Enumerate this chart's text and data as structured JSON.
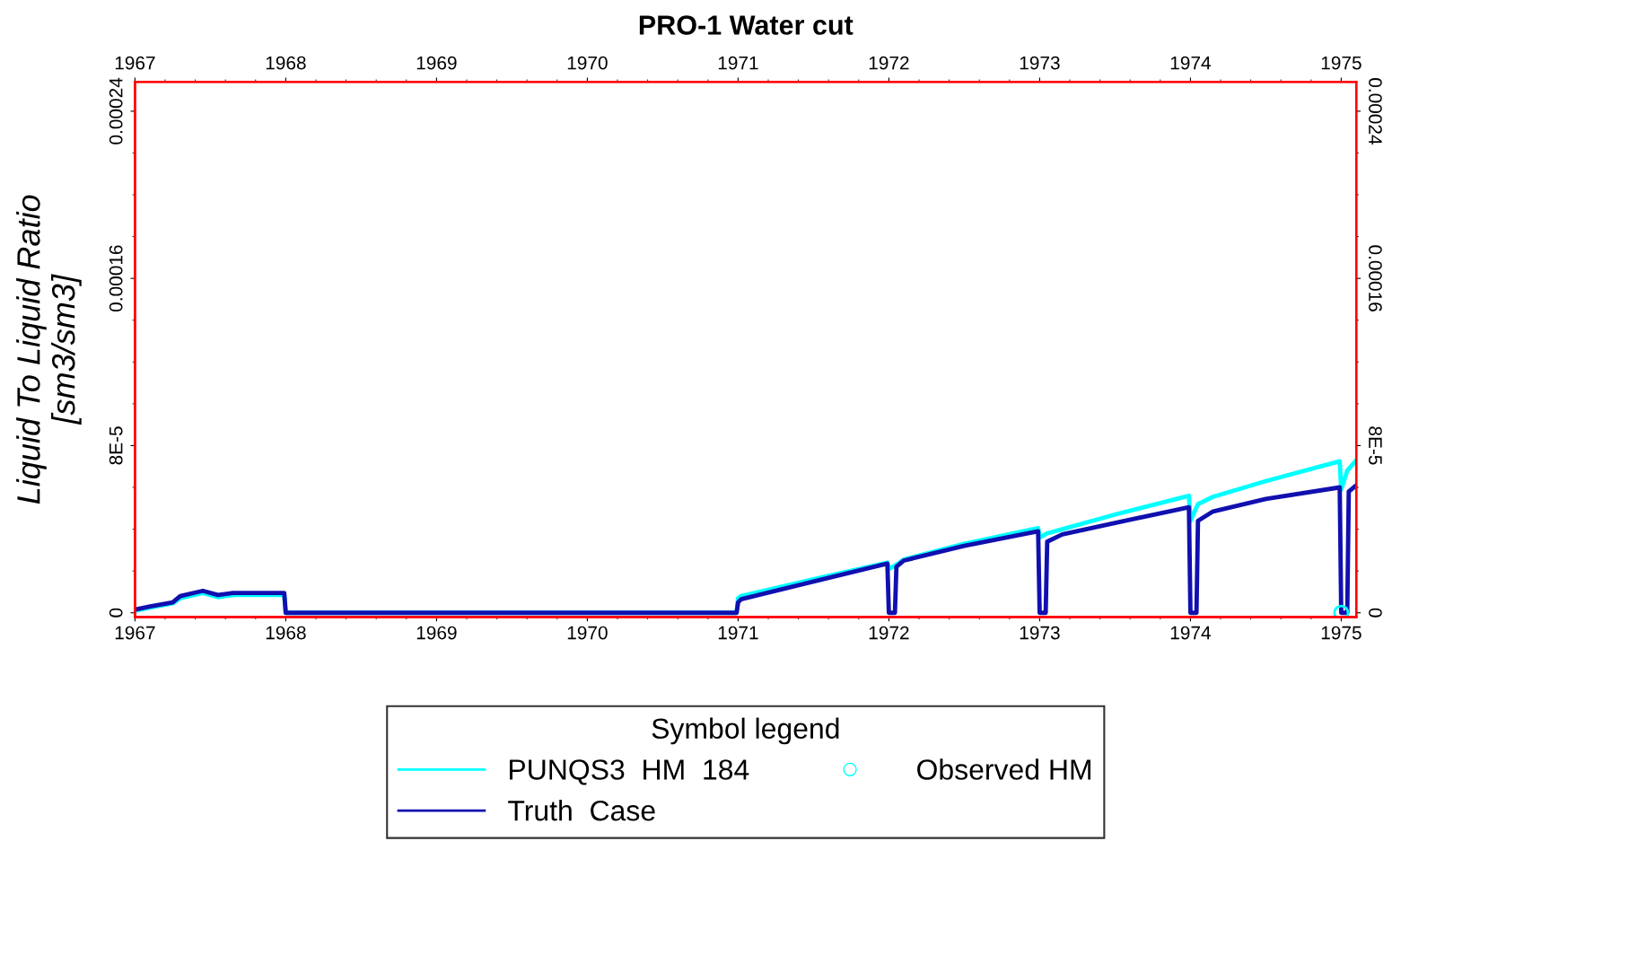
{
  "chart_data": {
    "type": "line",
    "title": "PRO-1 Water cut",
    "ylabel": "Liquid To Liquid Ratio\n[sm3/sm3]",
    "legend_title": "Symbol legend",
    "xlim": [
      1967,
      1975.1
    ],
    "xticks": [
      1967,
      1968,
      1969,
      1970,
      1971,
      1972,
      1973,
      1974,
      1975
    ],
    "x2lim": [
      1967,
      1975.1
    ],
    "x2ticks": [
      1967,
      1968,
      1969,
      1970,
      1971,
      1972,
      1973,
      1974,
      1975
    ],
    "ylim": [
      -2e-06,
      0.000254
    ],
    "yticks": [
      0,
      {
        "value": 8e-05,
        "label": "8E-5"
      },
      {
        "value": 0.00016,
        "label": "0.00016"
      },
      {
        "value": 0.00024,
        "label": "0.00024"
      }
    ],
    "y2lim": [
      -2e-06,
      0.000254
    ],
    "y2ticks": [
      0,
      {
        "value": 8e-05,
        "label": "8E-5"
      },
      {
        "value": 0.00016,
        "label": "0.00016"
      },
      {
        "value": 0.00024,
        "label": "0.00024"
      }
    ],
    "grid": false,
    "legend": "bottom",
    "line_style": "solid",
    "series": [
      {
        "name": "PUNQS3  HM  184",
        "color": "#00ffff",
        "x": [
          1967.0,
          1967.1,
          1967.25,
          1967.3,
          1967.45,
          1967.55,
          1967.65,
          1967.99,
          1968.0,
          1970.99,
          1971.0,
          1971.02,
          1971.5,
          1971.99,
          1972.0,
          1972.05,
          1972.1,
          1972.5,
          1972.99,
          1973.0,
          1973.05,
          1973.15,
          1973.5,
          1973.99,
          1974.0,
          1974.05,
          1974.15,
          1974.5,
          1974.99,
          1975.0,
          1975.04,
          1975.1
        ],
        "values": [
          1e-06,
          2.5e-06,
          4.5e-06,
          7e-06,
          9.5e-06,
          7.5e-06,
          8.5e-06,
          8.5e-06,
          0,
          0,
          7e-06,
          8e-06,
          1.6e-05,
          2.4e-05,
          2.1e-05,
          2.3e-05,
          2.55e-05,
          3.3e-05,
          4.05e-05,
          3.6e-05,
          3.8e-05,
          4e-05,
          4.7e-05,
          5.6e-05,
          4.4e-05,
          5.2e-05,
          5.55e-05,
          6.3e-05,
          7.25e-05,
          5.9e-05,
          6.8e-05,
          7.3e-05
        ]
      },
      {
        "name": "Truth  Case",
        "color": "#1010b0",
        "x": [
          1967.0,
          1967.1,
          1967.25,
          1967.3,
          1967.45,
          1967.55,
          1967.65,
          1967.99,
          1968.0,
          1970.99,
          1971.0,
          1971.02,
          1971.5,
          1971.99,
          1972.0,
          1972.04,
          1972.05,
          1972.1,
          1972.5,
          1972.99,
          1973.0,
          1973.04,
          1973.05,
          1973.15,
          1973.5,
          1973.99,
          1974.0,
          1974.04,
          1974.05,
          1974.15,
          1974.5,
          1974.99,
          1975.0,
          1975.04,
          1975.05,
          1975.1
        ],
        "values": [
          1.5e-06,
          3e-06,
          5e-06,
          8e-06,
          1.05e-05,
          8.5e-06,
          9.5e-06,
          9.5e-06,
          0,
          0,
          5e-06,
          6.5e-06,
          1.5e-05,
          2.35e-05,
          0,
          0,
          2.2e-05,
          2.5e-05,
          3.2e-05,
          3.9e-05,
          0,
          0,
          3.4e-05,
          3.75e-05,
          4.3e-05,
          5.05e-05,
          0,
          0,
          4.4e-05,
          4.85e-05,
          5.45e-05,
          6e-05,
          0,
          0,
          5.8e-05,
          6.1e-05
        ]
      },
      {
        "name": "Observed HM",
        "type": "scatter",
        "marker": "circle",
        "color": "#00ffff",
        "x": [
          1975.0
        ],
        "values": [
          0
        ]
      }
    ]
  }
}
